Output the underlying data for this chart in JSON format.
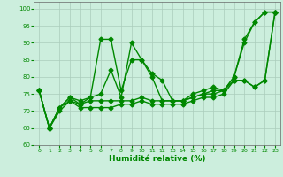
{
  "xlabel": "Humidité relative (%)",
  "background_color": "#cceedd",
  "grid_color": "#aaccbb",
  "line_color": "#008800",
  "marker": "D",
  "markersize": 2.5,
  "linewidth": 1.0,
  "xlim": [
    -0.5,
    23.5
  ],
  "ylim": [
    60,
    102
  ],
  "yticks": [
    60,
    65,
    70,
    75,
    80,
    85,
    90,
    95,
    100
  ],
  "xticks": [
    0,
    1,
    2,
    3,
    4,
    5,
    6,
    7,
    8,
    9,
    10,
    11,
    12,
    13,
    14,
    15,
    16,
    17,
    18,
    19,
    20,
    21,
    22,
    23
  ],
  "series": [
    [
      76,
      65,
      71,
      74,
      73,
      74,
      91,
      91,
      76,
      85,
      85,
      81,
      79,
      73,
      73,
      75,
      76,
      77,
      76,
      80,
      91,
      96,
      99,
      99
    ],
    [
      76,
      65,
      71,
      74,
      72,
      74,
      75,
      82,
      74,
      90,
      85,
      80,
      73,
      73,
      73,
      74,
      75,
      76,
      76,
      80,
      90,
      96,
      99,
      99
    ],
    [
      76,
      65,
      71,
      73,
      72,
      73,
      73,
      73,
      73,
      73,
      74,
      73,
      73,
      73,
      73,
      74,
      75,
      75,
      76,
      79,
      79,
      77,
      79,
      99
    ],
    [
      76,
      65,
      70,
      73,
      71,
      71,
      71,
      71,
      72,
      72,
      73,
      72,
      72,
      72,
      72,
      73,
      74,
      74,
      75,
      79,
      79,
      77,
      79,
      99
    ]
  ]
}
